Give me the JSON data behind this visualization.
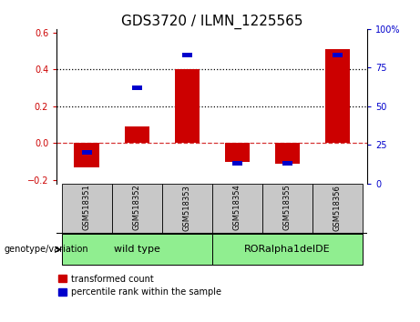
{
  "title": "GDS3720 / ILMN_1225565",
  "samples": [
    "GSM518351",
    "GSM518352",
    "GSM518353",
    "GSM518354",
    "GSM518355",
    "GSM518356"
  ],
  "red_values": [
    -0.13,
    0.09,
    0.4,
    -0.1,
    -0.11,
    0.51
  ],
  "blue_percentiles": [
    20,
    62,
    83,
    13,
    13,
    83
  ],
  "ylim_left": [
    -0.22,
    0.62
  ],
  "ylim_right": [
    0,
    100
  ],
  "yticks_left": [
    -0.2,
    0.0,
    0.2,
    0.4,
    0.6
  ],
  "yticks_right": [
    0,
    25,
    50,
    75,
    100
  ],
  "red_color": "#CC0000",
  "blue_color": "#0000CC",
  "bar_width": 0.5,
  "blue_bar_width": 0.2,
  "tick_bg_color": "#c8c8c8",
  "group_bg_color": "#90EE90",
  "legend_red": "transformed count",
  "legend_blue": "percentile rank within the sample",
  "title_fontsize": 11,
  "tick_fontsize": 7,
  "sample_fontsize": 6,
  "group_fontsize": 8,
  "legend_fontsize": 7,
  "groups": [
    {
      "label": "wild type",
      "start": 0,
      "end": 2
    },
    {
      "label": "RORalpha1delDE",
      "start": 3,
      "end": 5
    }
  ],
  "group_label": "genotype/variation",
  "hlines_dotted": [
    0.2,
    0.4
  ],
  "hline_dash": 0.0
}
